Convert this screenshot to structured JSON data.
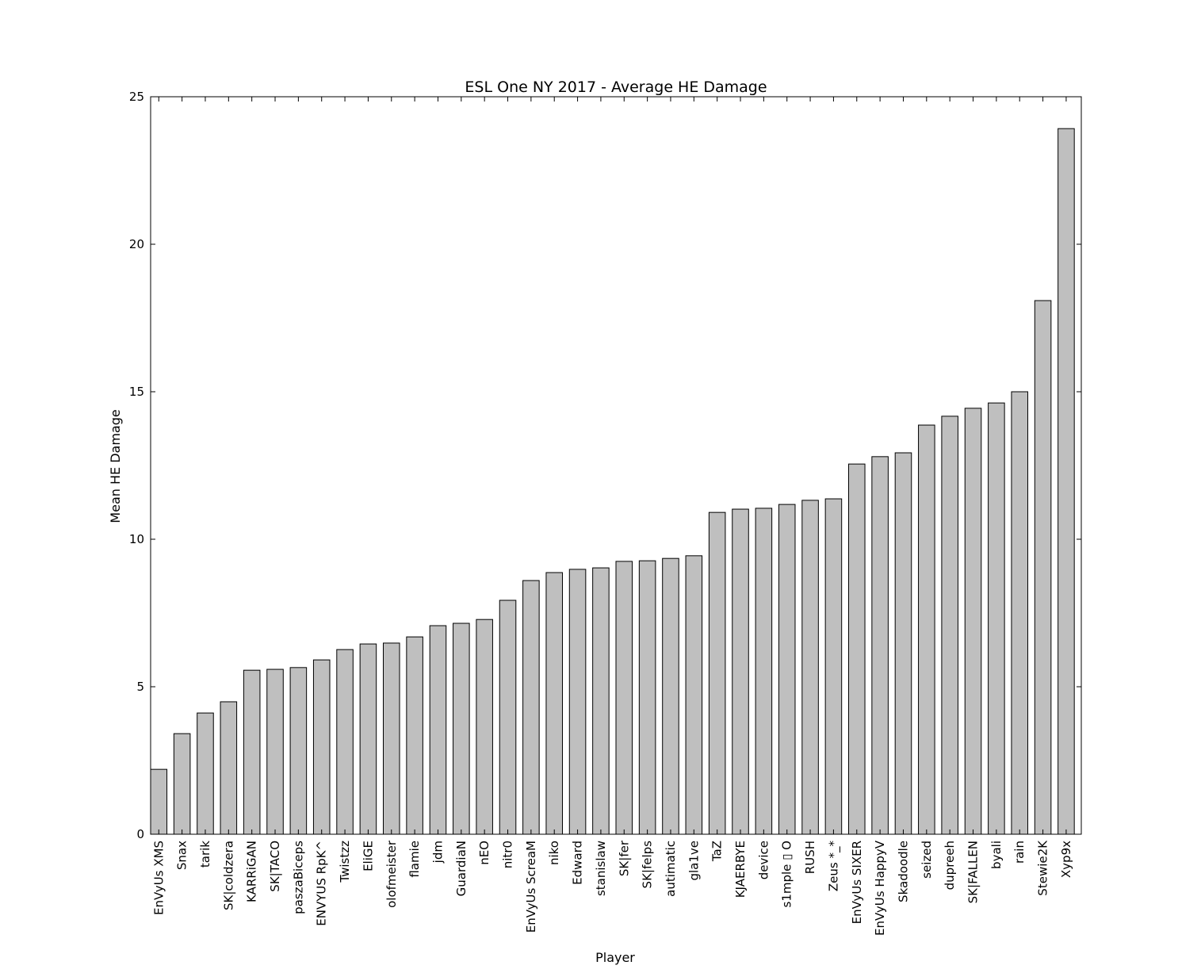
{
  "chart_data": {
    "type": "bar",
    "title": "ESL One NY 2017 - Average HE Damage",
    "x_label": "Player",
    "y_label": "Mean HE Damage",
    "categories": [
      "EnVyUs XMS",
      "Snax",
      "tarik",
      "SK|coldzera",
      "KARRiGAN",
      "SK|TACO",
      "paszaBiceps",
      "ENVYUS RpK^",
      "Twistzz",
      "EliGE",
      "olofmeister",
      "flamie",
      "jdm",
      "GuardiaN",
      "nEO",
      "nitr0",
      "EnVyUs ScreaM",
      "niko",
      "Edward",
      "stanislaw",
      "SK|fer",
      "SK|felps",
      "autimatic",
      "gla1ve",
      "TaZ",
      "KJAERBYE",
      "device",
      "s1mple ▯ O",
      "RUSH",
      "Zeus *_*",
      "EnVyUs SIXER",
      "EnVyUs HappyV",
      "Skadoodle",
      "seized",
      "dupreeh",
      "SK|FALLEN",
      "byali",
      "rain",
      "Stewie2K",
      "Xyp9x"
    ],
    "values": [
      2.2,
      3.41,
      4.11,
      4.49,
      5.56,
      5.59,
      5.65,
      5.91,
      6.26,
      6.45,
      6.48,
      6.69,
      7.07,
      7.15,
      7.28,
      7.93,
      8.6,
      8.87,
      8.98,
      9.03,
      9.25,
      9.27,
      9.35,
      9.44,
      10.91,
      11.02,
      11.05,
      11.18,
      11.32,
      11.37,
      12.55,
      12.8,
      12.93,
      13.87,
      14.17,
      14.44,
      14.62,
      15.0,
      18.09,
      23.92
    ],
    "color": "#bfbfbf",
    "ylim": [
      0,
      25
    ],
    "yticks": [
      0,
      5,
      10,
      15,
      20,
      25
    ],
    "grid": false
  }
}
